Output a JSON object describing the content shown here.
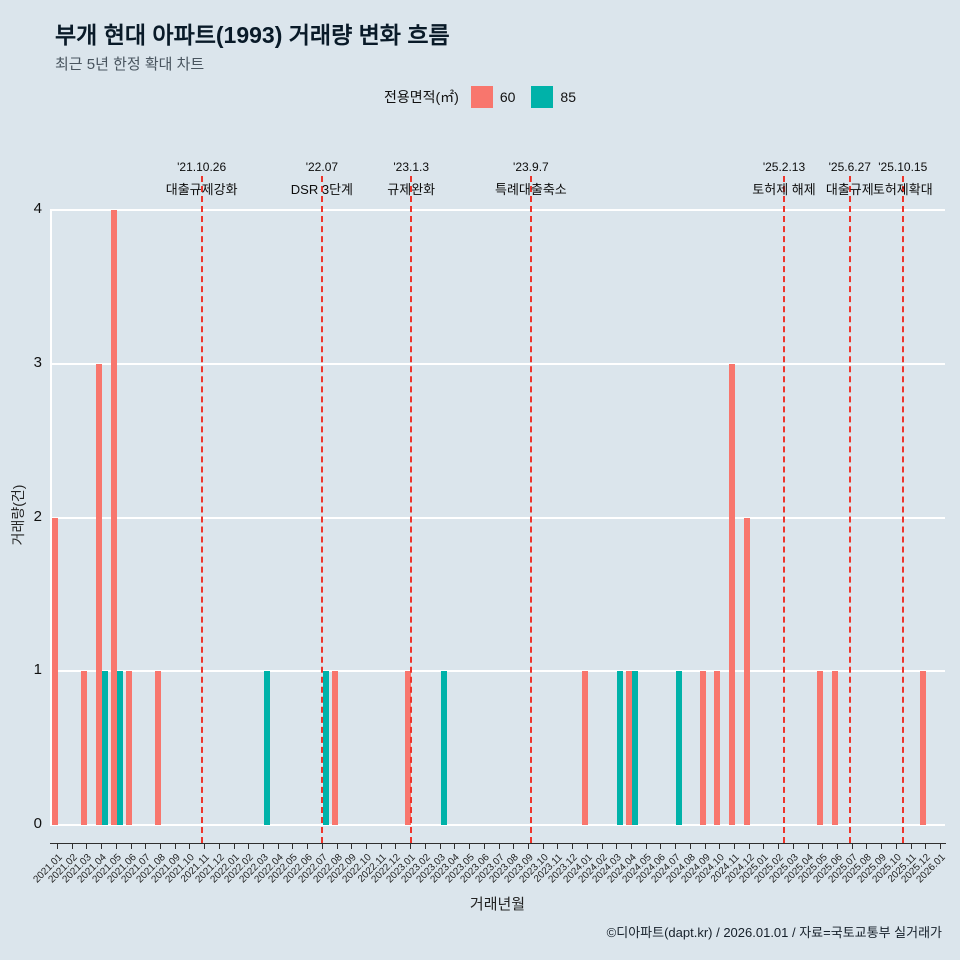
{
  "page": {
    "title": "부개 현대 아파트(1993) 거래량 변화 흐름",
    "subtitle": "최근 5년 한정 확대 차트",
    "footer": "©디아파트(dapt.kr) / 2026.01.01 / 자료=국토교통부 실거래가",
    "colors": {
      "background": "#dbe5ec"
    }
  },
  "legend": {
    "label": "전용면적(㎡)",
    "items": [
      {
        "name": "60",
        "color": "#F8766D"
      },
      {
        "name": "85",
        "color": "#00B2A9"
      }
    ]
  },
  "chart_data": {
    "type": "bar",
    "title": "부개 현대 아파트(1993) 거래량 변화 흐름",
    "subtitle": "최근 5년 한정 확대 차트",
    "xlabel": "거래년월",
    "ylabel": "거래량(건)",
    "ylim": [
      0,
      4
    ],
    "yticks": [
      0,
      1,
      2,
      3,
      4
    ],
    "grid": "horizontal-white",
    "legend_position": "top",
    "annotation_line_color": "#ee352b",
    "categories": [
      "2021.01",
      "2021.02",
      "2021.03",
      "2021.04",
      "2021.05",
      "2021.06",
      "2021.07",
      "2021.08",
      "2021.09",
      "2021.10",
      "2021.11",
      "2021.12",
      "2022.01",
      "2022.02",
      "2022.03",
      "2022.04",
      "2022.05",
      "2022.06",
      "2022.07",
      "2022.08",
      "2022.09",
      "2022.10",
      "2022.11",
      "2022.12",
      "2023.01",
      "2023.02",
      "2023.03",
      "2023.04",
      "2023.05",
      "2023.06",
      "2023.07",
      "2023.08",
      "2023.09",
      "2023.10",
      "2023.11",
      "2023.12",
      "2024.01",
      "2024.02",
      "2024.03",
      "2024.04",
      "2024.05",
      "2024.06",
      "2024.07",
      "2024.08",
      "2024.09",
      "2024.10",
      "2024.11",
      "2024.12",
      "2025.01",
      "2025.02",
      "2025.03",
      "2025.04",
      "2025.05",
      "2025.06",
      "2025.07",
      "2025.08",
      "2025.09",
      "2025.10",
      "2025.11",
      "2025.12",
      "2026.01"
    ],
    "series": [
      {
        "name": "60",
        "color": "#F8766D",
        "values": [
          2,
          0,
          1,
          3,
          4,
          1,
          0,
          1,
          0,
          0,
          0,
          0,
          0,
          0,
          0,
          0,
          0,
          0,
          0,
          1,
          0,
          0,
          0,
          0,
          1,
          0,
          0,
          0,
          0,
          0,
          0,
          0,
          0,
          0,
          0,
          0,
          1,
          0,
          0,
          1,
          0,
          0,
          0,
          0,
          1,
          1,
          3,
          2,
          0,
          0,
          0,
          0,
          1,
          1,
          0,
          0,
          0,
          0,
          0,
          1,
          0
        ]
      },
      {
        "name": "85",
        "color": "#00B2A9",
        "values": [
          0,
          0,
          0,
          1,
          1,
          0,
          0,
          0,
          0,
          0,
          0,
          0,
          0,
          0,
          1,
          0,
          0,
          0,
          1,
          0,
          0,
          0,
          0,
          0,
          0,
          0,
          1,
          0,
          0,
          0,
          0,
          0,
          0,
          0,
          0,
          0,
          0,
          0,
          1,
          1,
          0,
          0,
          1,
          0,
          0,
          0,
          0,
          0,
          0,
          0,
          0,
          0,
          0,
          0,
          0,
          0,
          0,
          0,
          0,
          0,
          0
        ]
      }
    ],
    "annotations": [
      {
        "date": "'21.10.26",
        "label": "대출규제강화",
        "pos": 9.83
      },
      {
        "date": "'22.07",
        "label": "DSR 3단계",
        "pos": 18.0
      },
      {
        "date": "'23.1.3",
        "label": "규제완화",
        "pos": 24.07
      },
      {
        "date": "'23.9.7",
        "label": "특례대출축소",
        "pos": 32.2
      },
      {
        "date": "'25.2.13",
        "label": "토허제 해제",
        "pos": 49.4
      },
      {
        "date": "'25.6.27",
        "label": "대출규제",
        "pos": 53.87
      },
      {
        "date": "'25.10.15",
        "label": "토허제확대",
        "pos": 57.47
      }
    ]
  }
}
